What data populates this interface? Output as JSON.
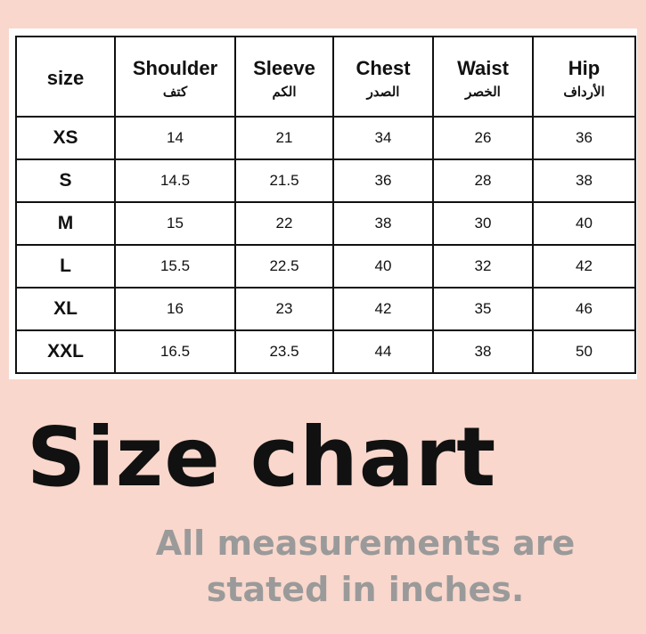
{
  "table": {
    "headers": [
      {
        "en": "size",
        "ar": ""
      },
      {
        "en": "Shoulder",
        "ar": "كتف"
      },
      {
        "en": "Sleeve",
        "ar": "الكم"
      },
      {
        "en": "Chest",
        "ar": "الصدر"
      },
      {
        "en": "Waist",
        "ar": "الخصر"
      },
      {
        "en": "Hip",
        "ar": "الأرداف"
      }
    ],
    "rows": [
      [
        "XS",
        "14",
        "21",
        "34",
        "26",
        "36"
      ],
      [
        "S",
        "14.5",
        "21.5",
        "36",
        "28",
        "38"
      ],
      [
        "M",
        "15",
        "22",
        "38",
        "30",
        "40"
      ],
      [
        "L",
        "15.5",
        "22.5",
        "40",
        "32",
        "42"
      ],
      [
        "XL",
        "16",
        "23",
        "42",
        "35",
        "46"
      ],
      [
        "XXL",
        "16.5",
        "23.5",
        "44",
        "38",
        "50"
      ]
    ]
  },
  "title": "Size chart",
  "note_line1": "All measurements are",
  "note_line2": "stated in inches.",
  "colors": {
    "background": "#f9d7cc",
    "note": "#9a9a9a"
  }
}
